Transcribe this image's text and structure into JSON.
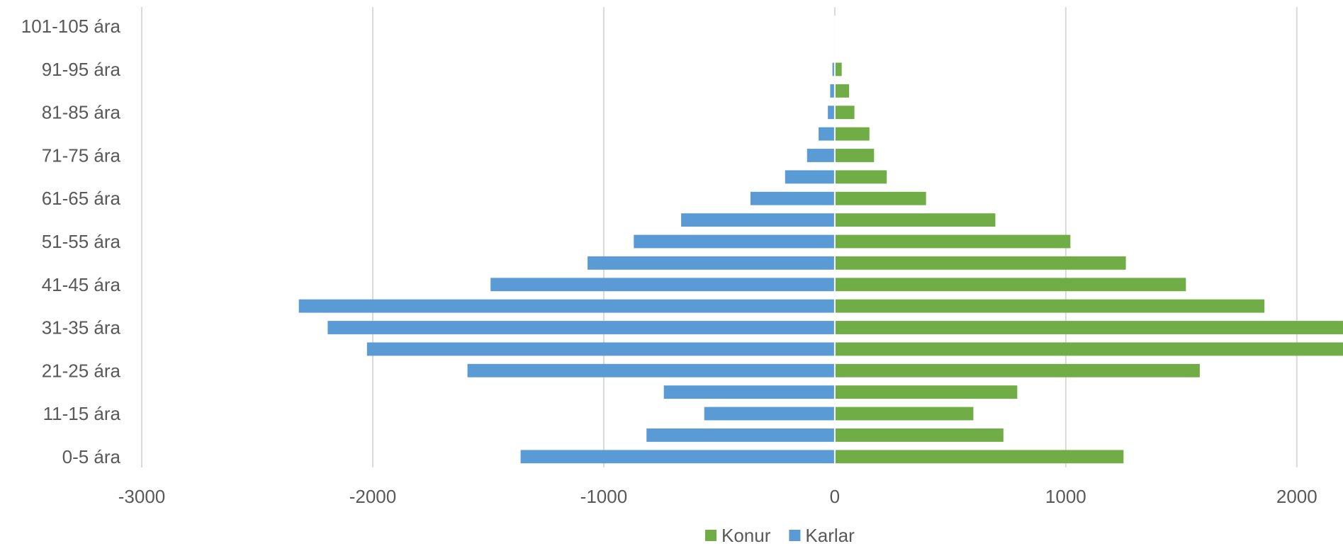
{
  "chart_data": {
    "type": "bar",
    "orientation": "horizontal",
    "stacked": true,
    "title": "",
    "xlabel": "",
    "ylabel": "",
    "xlim": [
      -3000,
      2200
    ],
    "xticks": [
      -3000,
      -2000,
      -1000,
      0,
      1000,
      2000
    ],
    "grid": true,
    "legend_position": "bottom",
    "categories": [
      "0-5 ára",
      "6-10 ára",
      "11-15 ára",
      "16-20 ára",
      "21-25 ára",
      "26-30 ára",
      "31-35 ára",
      "36-40 ára",
      "41-45 ára",
      "46-50 ára",
      "51-55 ára",
      "56-60 ára",
      "61-65 ára",
      "66-70 ára",
      "71-75 ára",
      "76-80 ára",
      "81-85 ára",
      "86-90 ára",
      "91-95 ára",
      "96-100 ára",
      "101-105 ára"
    ],
    "visible_category_labels": [
      "0-5 ára",
      "11-15 ára",
      "21-25 ára",
      "31-35 ára",
      "41-45 ára",
      "51-55 ára",
      "61-65 ára",
      "71-75 ára",
      "81-85 ára",
      "91-95 ára",
      "101-105 ára"
    ],
    "series": [
      {
        "name": "Konur",
        "color": "#70AD47",
        "values": [
          1250,
          730,
          600,
          790,
          1580,
          2230,
          2200,
          1860,
          1520,
          1260,
          1020,
          695,
          395,
          225,
          170,
          150,
          85,
          62,
          30,
          0,
          0
        ]
      },
      {
        "name": "Karlar",
        "color": "#5B9BD5",
        "values": [
          -1360,
          -815,
          -565,
          -740,
          -1590,
          -2025,
          -2195,
          -2320,
          -1490,
          -1070,
          -870,
          -665,
          -365,
          -215,
          -120,
          -70,
          -30,
          -20,
          -10,
          0,
          0
        ]
      }
    ]
  }
}
